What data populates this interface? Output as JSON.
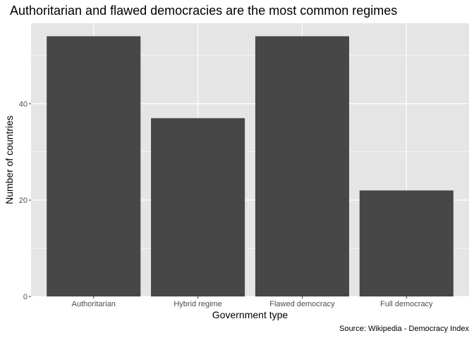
{
  "chart_data": {
    "type": "bar",
    "title": "Authoritarian and flawed democracies are the most common regimes",
    "xlabel": "Government type",
    "ylabel": "Number of countries",
    "caption": "Source: Wikipedia - Democracy Index",
    "categories": [
      "Authoritarian",
      "Hybrid regime",
      "Flawed democracy",
      "Full democracy"
    ],
    "values": [
      54,
      37,
      54,
      22
    ],
    "ylim": [
      0,
      56.7
    ],
    "yticks": [
      0,
      20,
      40
    ],
    "yticks_labels": [
      "0",
      "20",
      "40"
    ],
    "grid": true,
    "legend": "none",
    "colors": {
      "bar": "#474747",
      "panel": "#e5e5e5",
      "grid": "#ffffff"
    }
  }
}
